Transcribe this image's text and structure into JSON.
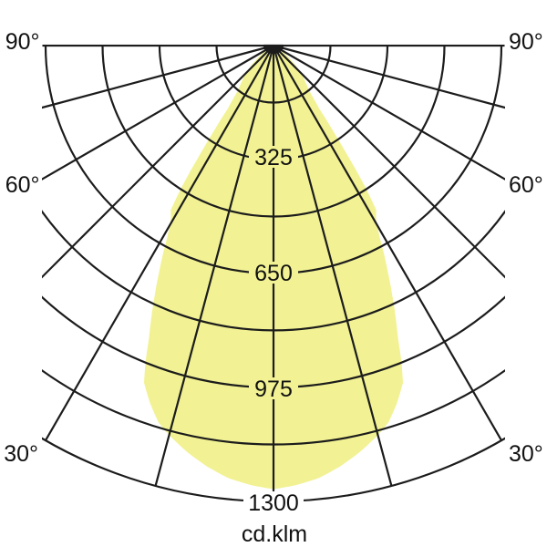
{
  "chart_data": {
    "type": "polar_intensity_diagram",
    "unit_label": "cd.klm",
    "axis": {
      "r_max_cd": 1300,
      "ring_step_cd": 162.5,
      "rings_cd": [
        162.5,
        325,
        487.5,
        650,
        812.5,
        975,
        1137.5,
        1300
      ],
      "radial_lines_deg": [
        0,
        15,
        30,
        45,
        60,
        75,
        90
      ]
    },
    "labeled_rings": [
      {
        "value": 325,
        "label": "325",
        "bg": "#f2f294"
      },
      {
        "value": 650,
        "label": "650",
        "bg": "#f2f294"
      },
      {
        "value": 975,
        "label": "975",
        "bg": "#f2f294"
      },
      {
        "value": 1300,
        "label": "1300",
        "bg": "#ffffff"
      }
    ],
    "angle_labels": [
      {
        "deg": 90,
        "label": "90°"
      },
      {
        "deg": 60,
        "label": "60°"
      },
      {
        "deg": 30,
        "label": "30°"
      }
    ],
    "beam": {
      "symmetric": true,
      "fill_color": "#f2f294",
      "line_color": "#1c1c1c",
      "polar_points_deg_cd": [
        [
          0,
          1265
        ],
        [
          3,
          1255
        ],
        [
          6,
          1240
        ],
        [
          9,
          1215
        ],
        [
          12,
          1185
        ],
        [
          15,
          1150
        ],
        [
          17,
          1123
        ],
        [
          19,
          1080
        ],
        [
          21,
          1030
        ],
        [
          22,
          975
        ],
        [
          23,
          910
        ],
        [
          24,
          860
        ],
        [
          25,
          810
        ],
        [
          26,
          762
        ],
        [
          27,
          715
        ],
        [
          28,
          670
        ],
        [
          29,
          625
        ],
        [
          30,
          588
        ],
        [
          31,
          568
        ],
        [
          32,
          553
        ],
        [
          33,
          480
        ],
        [
          34,
          380
        ],
        [
          35,
          290
        ],
        [
          36,
          220
        ],
        [
          38,
          170
        ],
        [
          40,
          148
        ],
        [
          42,
          132
        ],
        [
          44,
          120
        ],
        [
          46,
          100
        ],
        [
          48,
          85
        ],
        [
          50,
          68
        ],
        [
          52,
          55
        ],
        [
          54,
          40
        ],
        [
          56,
          25
        ],
        [
          58,
          12
        ],
        [
          60,
          0
        ]
      ]
    }
  }
}
